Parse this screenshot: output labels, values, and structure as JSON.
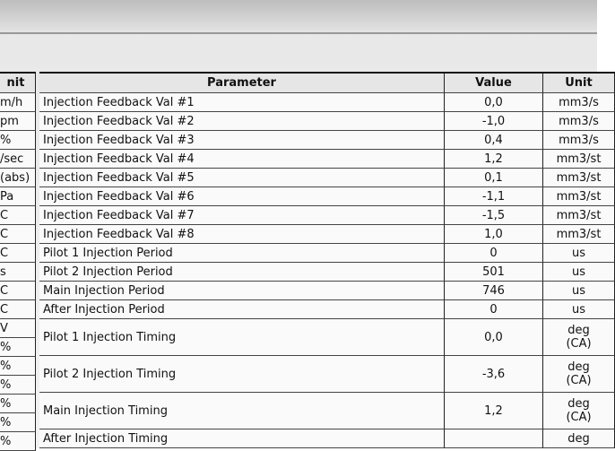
{
  "left_column": {
    "header": "nit",
    "rows": [
      "m/h",
      "pm",
      "%",
      "/sec",
      "(abs)",
      "Pa",
      "C",
      "C",
      "C",
      "s",
      "C",
      "C",
      "V",
      "%",
      "%",
      "%",
      "%",
      "%",
      "%"
    ]
  },
  "table": {
    "headers": [
      "Parameter",
      "Value",
      "Unit"
    ],
    "rows": [
      [
        "Injection Feedback Val #1",
        "0,0",
        "mm3/s"
      ],
      [
        "Injection Feedback Val #2",
        "-1,0",
        "mm3/s"
      ],
      [
        "Injection Feedback Val #3",
        "0,4",
        "mm3/s"
      ],
      [
        "Injection Feedback Val #4",
        "1,2",
        "mm3/st"
      ],
      [
        "Injection Feedback Val #5",
        "0,1",
        "mm3/st"
      ],
      [
        "Injection Feedback Val #6",
        "-1,1",
        "mm3/st"
      ],
      [
        "Injection Feedback Val #7",
        "-1,5",
        "mm3/st"
      ],
      [
        "Injection Feedback Val #8",
        "1,0",
        "mm3/st"
      ],
      [
        "Pilot 1 Injection Period",
        "0",
        "us"
      ],
      [
        "Pilot 2 Injection Period",
        "501",
        "us"
      ],
      [
        "Main Injection Period",
        "746",
        "us"
      ],
      [
        "After Injection Period",
        "0",
        "us"
      ],
      [
        "Pilot 1 Injection Timing",
        "0,0",
        "deg\n(CA)"
      ],
      [
        "Pilot 2 Injection Timing",
        "-3,6",
        "deg\n(CA)"
      ],
      [
        "Main Injection Timing",
        "1,2",
        "deg\n(CA)"
      ],
      [
        "After Injection Timing",
        "",
        "deg"
      ]
    ]
  }
}
